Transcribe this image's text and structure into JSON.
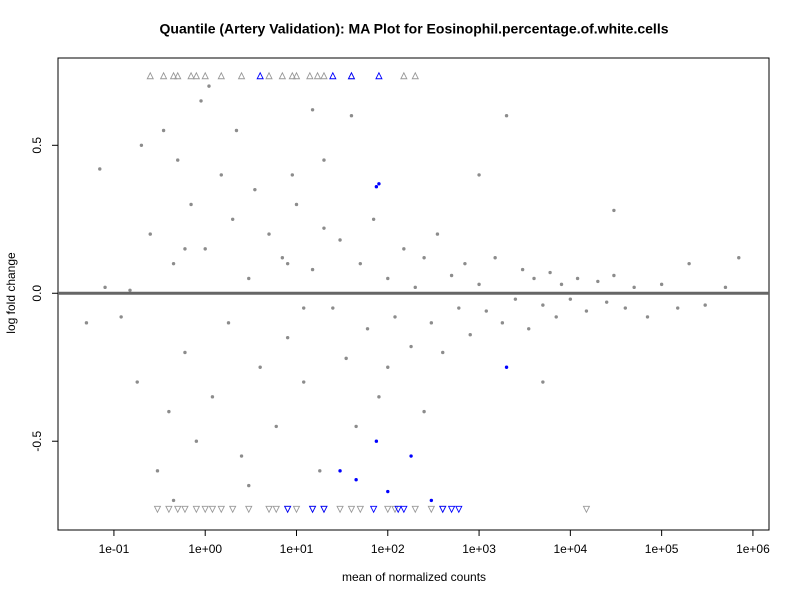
{
  "chart_data": {
    "type": "scatter",
    "title": "Quantile (Artery Validation): MA Plot for Eosinophil.percentage.of.white.cells",
    "x_label": "mean of normalized counts",
    "y_label": "log fold change",
    "xlog": true,
    "xlim": [
      0.0244,
      1500000
    ],
    "ylim": [
      -0.8,
      0.795
    ],
    "xticks": [
      {
        "value": 0.1,
        "label": "1e-01"
      },
      {
        "value": 1,
        "label": "1e+00"
      },
      {
        "value": 10,
        "label": "1e+01"
      },
      {
        "value": 100,
        "label": "1e+02"
      },
      {
        "value": 1000,
        "label": "1e+03"
      },
      {
        "value": 10000,
        "label": "1e+04"
      },
      {
        "value": 100000,
        "label": "1e+05"
      },
      {
        "value": 1000000,
        "label": "1e+06"
      }
    ],
    "yticks": [
      {
        "value": -0.5,
        "label": "-0.5"
      },
      {
        "value": 0,
        "label": "0.0"
      },
      {
        "value": 0.5,
        "label": "0.5"
      }
    ],
    "hline": 0,
    "hline_color": "#666666",
    "series": [
      {
        "color": "#8c8c8c",
        "marker": "circle",
        "x": [
          0.05,
          0.07,
          0.08,
          0.12,
          0.15,
          0.18,
          0.2,
          0.25,
          0.3,
          0.35,
          0.4,
          0.45,
          0.5,
          0.6,
          0.7,
          0.8,
          0.9,
          1,
          1.2,
          1.5,
          1.8,
          2,
          2.5,
          3,
          3.5,
          4,
          5,
          6,
          7,
          8,
          10,
          12,
          15,
          18,
          20,
          25,
          30,
          35,
          40,
          50,
          60,
          70,
          80,
          100,
          120,
          150,
          180,
          200,
          250,
          300,
          350,
          400,
          500,
          600,
          700,
          800,
          1000,
          1200,
          1500,
          1800,
          2000,
          2500,
          3000,
          3500,
          4000,
          5000,
          6000,
          7000,
          8000,
          10000,
          12000,
          15000,
          20000,
          25000,
          30000,
          40000,
          50000,
          70000,
          100000,
          150000,
          200000,
          300000,
          500000,
          700000,
          0.45,
          1.1,
          3,
          15,
          2.2,
          0.6,
          9,
          45,
          250,
          5000,
          30000,
          1000,
          8,
          12,
          100,
          20
        ],
        "y": [
          -0.1,
          0.42,
          0.02,
          -0.08,
          0.01,
          -0.3,
          0.5,
          0.2,
          -0.6,
          0.55,
          -0.4,
          0.1,
          0.45,
          -0.2,
          0.3,
          -0.5,
          0.65,
          0.15,
          -0.35,
          0.4,
          -0.1,
          0.25,
          -0.55,
          0.05,
          0.35,
          -0.25,
          0.2,
          -0.45,
          0.12,
          -0.15,
          0.3,
          -0.3,
          0.08,
          -0.6,
          0.45,
          -0.05,
          0.18,
          -0.22,
          0.6,
          0.1,
          -0.12,
          0.25,
          -0.35,
          0.05,
          -0.08,
          0.15,
          -0.18,
          0.02,
          0.12,
          -0.1,
          0.2,
          -0.2,
          0.06,
          -0.05,
          0.1,
          -0.14,
          0.03,
          -0.06,
          0.12,
          -0.1,
          0.6,
          -0.02,
          0.08,
          -0.12,
          0.05,
          -0.04,
          0.07,
          -0.08,
          0.03,
          -0.02,
          0.05,
          -0.06,
          0.04,
          -0.03,
          0.06,
          -0.05,
          0.02,
          -0.08,
          0.03,
          -0.05,
          0.1,
          -0.04,
          0.02,
          0.12,
          -0.7,
          0.7,
          -0.65,
          0.62,
          0.55,
          0.15,
          0.4,
          -0.45,
          -0.4,
          -0.3,
          0.28,
          0.4,
          0.1,
          -0.05,
          -0.25,
          0.22
        ]
      },
      {
        "color": "#0000ff",
        "marker": "circle",
        "x": [
          75,
          80,
          2000,
          75,
          180,
          30,
          45,
          100,
          300
        ],
        "y": [
          0.36,
          0.37,
          -0.25,
          -0.5,
          -0.55,
          -0.6,
          -0.63,
          -0.67,
          -0.7
        ]
      },
      {
        "color": "#999999",
        "marker": "triangle-up",
        "x": [
          0.25,
          0.35,
          0.45,
          0.5,
          0.7,
          0.8,
          1,
          1.5,
          2.5,
          5,
          7,
          9,
          10,
          14,
          17,
          20,
          40,
          150,
          200
        ],
        "y": [
          0.735,
          0.735,
          0.735,
          0.735,
          0.735,
          0.735,
          0.735,
          0.735,
          0.735,
          0.735,
          0.735,
          0.735,
          0.735,
          0.735,
          0.735,
          0.735,
          0.735,
          0.735,
          0.735
        ]
      },
      {
        "color": "#0000ff",
        "marker": "triangle-up",
        "x": [
          4,
          25,
          40,
          80
        ],
        "y": [
          0.735,
          0.735,
          0.735,
          0.735
        ]
      },
      {
        "color": "#999999",
        "marker": "triangle-down",
        "x": [
          0.3,
          0.4,
          0.5,
          0.6,
          0.8,
          1,
          1.2,
          1.5,
          2,
          3,
          5,
          6,
          8,
          10,
          15,
          20,
          30,
          40,
          50,
          100,
          120,
          200,
          300,
          400,
          15000
        ],
        "y": [
          -0.73,
          -0.73,
          -0.73,
          -0.73,
          -0.73,
          -0.73,
          -0.73,
          -0.73,
          -0.73,
          -0.73,
          -0.73,
          -0.73,
          -0.73,
          -0.73,
          -0.73,
          -0.73,
          -0.73,
          -0.73,
          -0.73,
          -0.73,
          -0.73,
          -0.73,
          -0.73,
          -0.73,
          -0.73
        ]
      },
      {
        "color": "#0000ff",
        "marker": "triangle-down",
        "x": [
          8,
          15,
          20,
          70,
          130,
          150,
          400,
          500,
          600
        ],
        "y": [
          -0.73,
          -0.73,
          -0.73,
          -0.73,
          -0.73,
          -0.73,
          -0.73,
          -0.73,
          -0.73
        ]
      }
    ]
  }
}
